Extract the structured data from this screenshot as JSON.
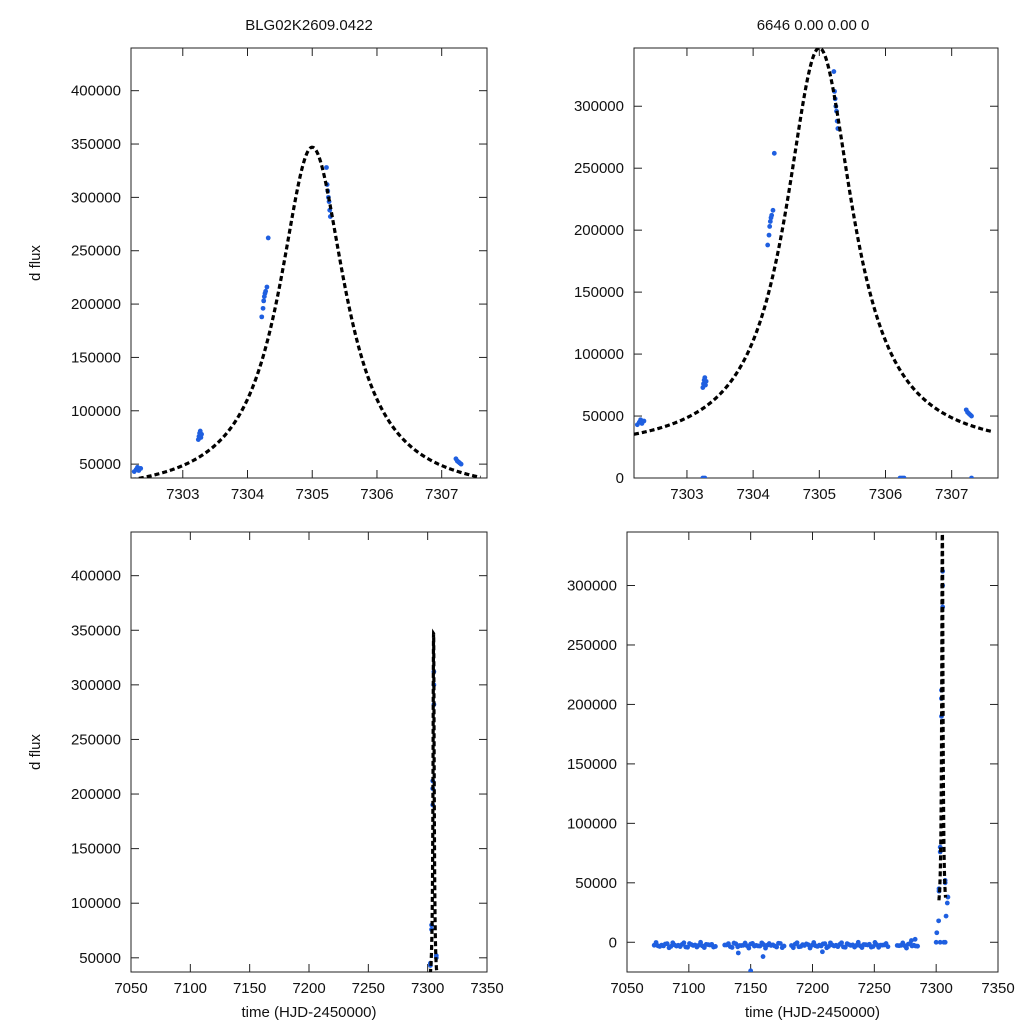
{
  "figure": {
    "title_left": "BLG02K2609.0422",
    "title_right": "6646   0.00   0.00   0"
  },
  "chart_data": [
    {
      "type": "scatter",
      "id": "top-left",
      "title": "BLG02K2609.0422",
      "xlabel": "",
      "ylabel": "d flux",
      "xlim": [
        7302.2,
        7307.7
      ],
      "ylim": [
        37000,
        440000
      ],
      "xticks": [
        7303,
        7304,
        7305,
        7306,
        7307
      ],
      "yticks": [
        50000,
        100000,
        150000,
        200000,
        250000,
        300000,
        350000,
        400000
      ],
      "model": {
        "t0": 7305.0,
        "peak": 347000,
        "base": 20000,
        "tau": 0.62,
        "x_start": 7302.2,
        "x_end": 7307.6
      },
      "points": [
        [
          7302.25,
          43000
        ],
        [
          7302.28,
          45000
        ],
        [
          7302.3,
          47000
        ],
        [
          7302.32,
          44000
        ],
        [
          7302.35,
          46000
        ],
        [
          7303.24,
          73000
        ],
        [
          7303.25,
          76000
        ],
        [
          7303.26,
          79000
        ],
        [
          7303.27,
          81000
        ],
        [
          7303.28,
          75000
        ],
        [
          7303.29,
          78000
        ],
        [
          7304.22,
          188000
        ],
        [
          7304.24,
          196000
        ],
        [
          7304.25,
          203000
        ],
        [
          7304.26,
          207000
        ],
        [
          7304.27,
          210000
        ],
        [
          7304.28,
          212000
        ],
        [
          7304.3,
          216000
        ],
        [
          7304.32,
          262000
        ],
        [
          7305.22,
          328000
        ],
        [
          7305.23,
          312000
        ],
        [
          7305.24,
          306000
        ],
        [
          7305.25,
          300000
        ],
        [
          7305.26,
          296000
        ],
        [
          7305.27,
          288000
        ],
        [
          7305.28,
          282000
        ],
        [
          7307.22,
          55000
        ],
        [
          7307.24,
          53000
        ],
        [
          7307.26,
          52000
        ],
        [
          7307.28,
          51000
        ],
        [
          7307.3,
          50000
        ]
      ]
    },
    {
      "type": "scatter",
      "id": "top-right",
      "title": "6646   0.00   0.00   0",
      "xlabel": "",
      "ylabel": "",
      "xlim": [
        7302.2,
        7307.7
      ],
      "ylim": [
        0,
        347000
      ],
      "xticks": [
        7303,
        7304,
        7305,
        7306,
        7307
      ],
      "yticks": [
        0,
        50000,
        100000,
        150000,
        200000,
        250000,
        300000
      ],
      "model": {
        "t0": 7305.0,
        "peak": 347000,
        "base": 20000,
        "tau": 0.62,
        "x_start": 7302.2,
        "x_end": 7307.6
      },
      "points": [
        [
          7302.25,
          43000
        ],
        [
          7302.28,
          45000
        ],
        [
          7302.3,
          47000
        ],
        [
          7302.32,
          44000
        ],
        [
          7302.35,
          46000
        ],
        [
          7303.24,
          73000
        ],
        [
          7303.25,
          76000
        ],
        [
          7303.26,
          79000
        ],
        [
          7303.27,
          81000
        ],
        [
          7303.28,
          75000
        ],
        [
          7303.29,
          78000
        ],
        [
          7303.24,
          0
        ],
        [
          7303.27,
          0
        ],
        [
          7304.22,
          188000
        ],
        [
          7304.24,
          196000
        ],
        [
          7304.25,
          203000
        ],
        [
          7304.26,
          207000
        ],
        [
          7304.27,
          210000
        ],
        [
          7304.28,
          212000
        ],
        [
          7304.3,
          216000
        ],
        [
          7304.32,
          262000
        ],
        [
          7305.22,
          328000
        ],
        [
          7305.23,
          312000
        ],
        [
          7305.24,
          306000
        ],
        [
          7305.25,
          300000
        ],
        [
          7305.26,
          296000
        ],
        [
          7305.27,
          288000
        ],
        [
          7305.28,
          282000
        ],
        [
          7306.22,
          0
        ],
        [
          7306.25,
          0
        ],
        [
          7306.28,
          0
        ],
        [
          7307.22,
          55000
        ],
        [
          7307.24,
          53000
        ],
        [
          7307.26,
          52000
        ],
        [
          7307.28,
          51000
        ],
        [
          7307.3,
          50000
        ],
        [
          7307.3,
          0
        ]
      ]
    },
    {
      "type": "scatter",
      "id": "bottom-left",
      "title": "",
      "xlabel": "time (HJD-2450000)",
      "ylabel": "d flux",
      "xlim": [
        7050,
        7350
      ],
      "ylim": [
        37000,
        440000
      ],
      "xticks": [
        7050,
        7100,
        7150,
        7200,
        7250,
        7300,
        7350
      ],
      "yticks": [
        50000,
        100000,
        150000,
        200000,
        250000,
        300000,
        350000,
        400000
      ],
      "model": {
        "t0": 7305.0,
        "peak": 347000,
        "base": 20000,
        "tau": 0.62,
        "x_start": 7302.2,
        "x_end": 7307.6
      },
      "points": [
        [
          7302.3,
          45000
        ],
        [
          7302.3,
          43000
        ],
        [
          7303.25,
          76000
        ],
        [
          7303.27,
          80000
        ],
        [
          7304.25,
          205000
        ],
        [
          7304.28,
          212000
        ],
        [
          7304.3,
          190000
        ],
        [
          7305.25,
          300000
        ],
        [
          7305.22,
          312000
        ],
        [
          7305.27,
          282000
        ],
        [
          7307.25,
          52000
        ],
        [
          7307.28,
          50000
        ]
      ]
    },
    {
      "type": "scatter",
      "id": "bottom-right",
      "title": "",
      "xlabel": "time (HJD-2450000)",
      "ylabel": "",
      "xlim": [
        7050,
        7350
      ],
      "ylim": [
        -25000,
        345000
      ],
      "xticks": [
        7050,
        7100,
        7150,
        7200,
        7250,
        7300,
        7350
      ],
      "yticks": [
        0,
        50000,
        100000,
        150000,
        200000,
        250000,
        300000
      ],
      "model": {
        "t0": 7305.0,
        "peak": 347000,
        "base": 20000,
        "tau": 0.62,
        "x_start": 7302.2,
        "x_end": 7307.6
      },
      "baseline": {
        "x_start": 7072,
        "x_end": 7285,
        "spacing": 1.5,
        "y_center": -2500,
        "y_spread": 2500
      },
      "points": [
        [
          7150,
          -24000
        ],
        [
          7160,
          -12000
        ],
        [
          7140,
          -9000
        ],
        [
          7208,
          -8000
        ],
        [
          7280,
          1500
        ],
        [
          7283,
          2500
        ],
        [
          7300,
          0
        ],
        [
          7303.25,
          0
        ],
        [
          7306.25,
          0
        ],
        [
          7307.3,
          0
        ],
        [
          7302.3,
          45000
        ],
        [
          7302.3,
          43000
        ],
        [
          7303.25,
          76000
        ],
        [
          7303.27,
          80000
        ],
        [
          7304.25,
          205000
        ],
        [
          7304.28,
          212000
        ],
        [
          7304.3,
          190000
        ],
        [
          7305.25,
          300000
        ],
        [
          7305.22,
          312000
        ],
        [
          7305.27,
          282000
        ],
        [
          7307.25,
          52000
        ],
        [
          7307.28,
          50000
        ],
        [
          7308,
          22000
        ],
        [
          7309,
          33000
        ],
        [
          7309.5,
          38000
        ],
        [
          7300.5,
          8000
        ],
        [
          7302,
          18000
        ]
      ]
    }
  ]
}
